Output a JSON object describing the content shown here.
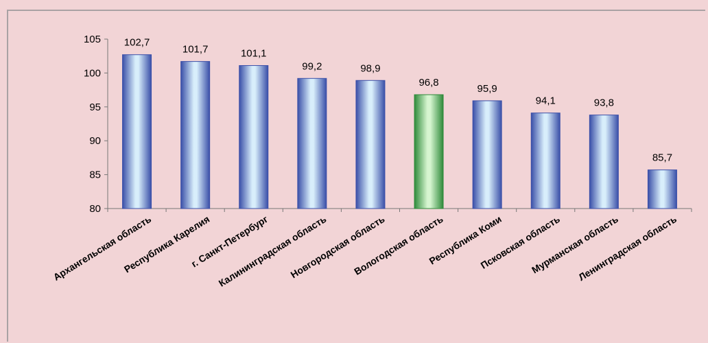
{
  "chart_data": {
    "type": "bar",
    "title": "",
    "xlabel": "",
    "ylabel": "",
    "ylim": [
      80,
      105
    ],
    "yticks": [
      80,
      85,
      90,
      95,
      100,
      105
    ],
    "grid": false,
    "legend": "none",
    "categories": [
      "Архангельская область",
      "Республика Карелия",
      "г. Санкт-Петербург",
      "Калининградская область",
      "Новгородская область",
      "Вологодская область",
      "Республика Коми",
      "Псковская область",
      "Мурманская область",
      "Ленинградская область"
    ],
    "values": [
      102.7,
      101.7,
      101.1,
      99.2,
      98.9,
      96.8,
      95.9,
      94.1,
      93.8,
      85.7
    ],
    "value_labels": [
      "102,7",
      "101,7",
      "101,1",
      "99,2",
      "98,9",
      "96,8",
      "95,9",
      "94,1",
      "93,8",
      "85,7"
    ],
    "highlight_category": "Вологодская область",
    "colors": {
      "bar_edge": "#3a4fa8",
      "bar_center": "#d8eefb",
      "highlight_edge": "#2f8a3a",
      "highlight_center": "#d6f5d0",
      "axis": "#777777",
      "background": "#f2d4d6"
    }
  }
}
